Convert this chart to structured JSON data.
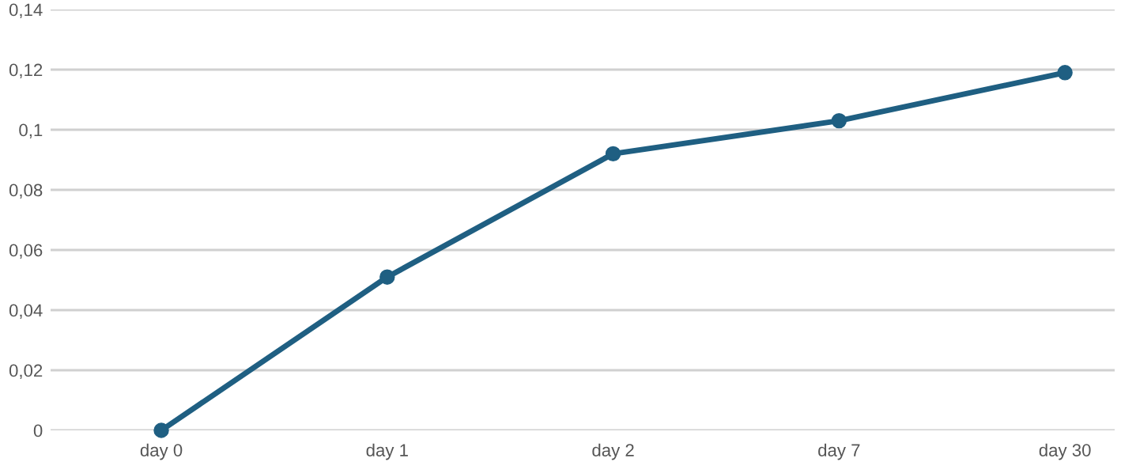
{
  "chart_data": {
    "type": "line",
    "categories": [
      "day 0",
      "day 1",
      "day 2",
      "day 7",
      "day 30"
    ],
    "series": [
      {
        "color": "#1f5f82",
        "values": [
          0,
          0.051,
          0.092,
          0.103,
          0.119
        ]
      }
    ],
    "ylim": [
      0,
      0.14
    ],
    "yticks": [
      0,
      {
        "value": 0.02,
        "label": "0,02"
      },
      {
        "value": 0.04,
        "label": "0,04"
      },
      {
        "value": 0.06,
        "label": "0,06"
      },
      {
        "value": 0.08,
        "label": "0,08"
      },
      {
        "value": 0.1,
        "label": "0,1"
      },
      {
        "value": 0.12,
        "label": "0,12"
      },
      {
        "value": 0.14,
        "label": "0,14"
      }
    ],
    "grid": "y",
    "marker": "circle",
    "line_style": "solid"
  }
}
